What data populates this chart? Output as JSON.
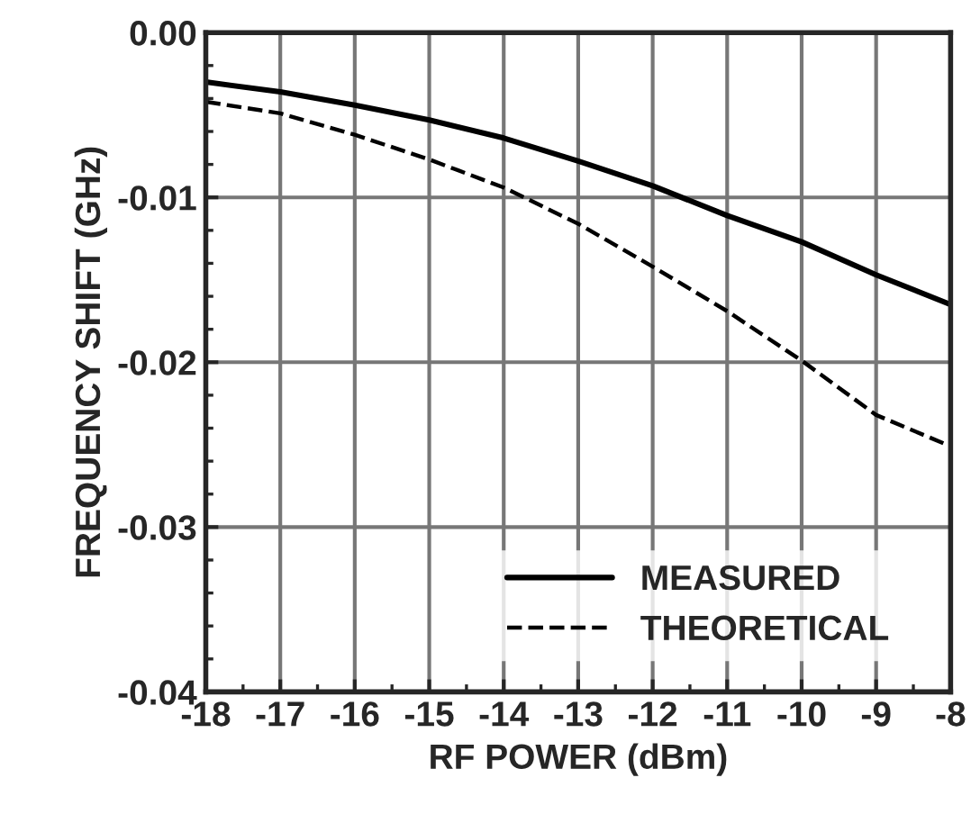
{
  "chart_data": {
    "type": "line",
    "xlabel": "RF POWER (dBm)",
    "ylabel": "FREQUENCY SHIFT (GHz)",
    "x": [
      -18,
      -17,
      -16,
      -15,
      -14,
      -13,
      -12,
      -11,
      -10,
      -9,
      -8
    ],
    "series": [
      {
        "name": "MEASURED",
        "color": "#000000",
        "line_style": "solid",
        "values": [
          -0.003,
          -0.0036,
          -0.0044,
          -0.0053,
          -0.0064,
          -0.0078,
          -0.0093,
          -0.0111,
          -0.0127,
          -0.0147,
          -0.0165
        ]
      },
      {
        "name": "THEORETICAL",
        "color": "#000000",
        "line_style": "dashed",
        "values": [
          -0.0042,
          -0.0049,
          -0.0062,
          -0.0077,
          -0.0094,
          -0.0116,
          -0.0142,
          -0.0169,
          -0.0199,
          -0.0232,
          -0.0251
        ]
      }
    ],
    "xlim": [
      -18,
      -8
    ],
    "xticks": [
      -18,
      -17,
      -16,
      -15,
      -14,
      -13,
      -12,
      -11,
      -10,
      -9,
      -8
    ],
    "ylim": [
      -0.04,
      0.0
    ],
    "yticks": [
      {
        "value": -0.04,
        "label": "-0.04"
      },
      {
        "value": -0.03,
        "label": "-0.03"
      },
      {
        "value": -0.02,
        "label": "-0.02"
      },
      {
        "value": -0.01,
        "label": "-0.01"
      },
      {
        "value": 0.0,
        "label": "0.00"
      }
    ],
    "grid": true,
    "legend": "bottom right"
  }
}
